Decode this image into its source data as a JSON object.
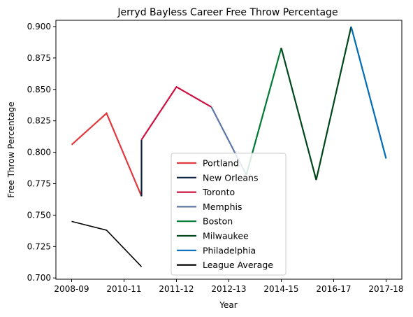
{
  "chart_data": {
    "type": "line",
    "title": "Jerryd Bayless Career Free Throw Percentage",
    "xlabel": "Year",
    "ylabel": "Free Throw Percentage",
    "x_tick_labels": [
      "2008-09",
      "2010-11",
      "2011-12",
      "2012-13",
      "2014-15",
      "2016-17",
      "2017-18"
    ],
    "x_tick_positions": [
      0,
      1.5,
      3,
      4.5,
      6,
      7.5,
      9
    ],
    "xlim": [
      -0.45,
      9.45
    ],
    "ylim": [
      0.699,
      0.905
    ],
    "yticks": [
      0.7,
      0.725,
      0.75,
      0.775,
      0.8,
      0.825,
      0.85,
      0.875,
      0.9
    ],
    "ytick_labels": [
      "0.700",
      "0.725",
      "0.750",
      "0.775",
      "0.800",
      "0.825",
      "0.850",
      "0.875",
      "0.900"
    ],
    "grid": false,
    "legend_placement": "bottom-center",
    "series": [
      {
        "name": "Portland",
        "color": "#e03a3e",
        "points": [
          [
            0,
            0.806
          ],
          [
            1,
            0.831
          ],
          [
            2,
            0.765
          ]
        ]
      },
      {
        "name": "New Orleans",
        "color": "#0c2340",
        "points": [
          [
            2,
            0.765
          ],
          [
            2,
            0.81
          ]
        ]
      },
      {
        "name": "Toronto",
        "color": "#ce1141",
        "points": [
          [
            2,
            0.81
          ],
          [
            3,
            0.852
          ],
          [
            4,
            0.836
          ]
        ]
      },
      {
        "name": "Memphis",
        "color": "#5d76a9",
        "points": [
          [
            4,
            0.836
          ],
          [
            5,
            0.782
          ]
        ]
      },
      {
        "name": "Boston",
        "color": "#007a33",
        "points": [
          [
            5,
            0.782
          ],
          [
            6,
            0.883
          ]
        ]
      },
      {
        "name": "Milwaukee",
        "color": "#00471b",
        "points": [
          [
            6,
            0.883
          ],
          [
            7,
            0.778
          ],
          [
            8,
            0.9
          ]
        ]
      },
      {
        "name": "Philadelphia",
        "color": "#006bb6",
        "points": [
          [
            8,
            0.9
          ],
          [
            9,
            0.795
          ]
        ]
      },
      {
        "name": "League Average",
        "color": "#000000",
        "points": [
          [
            0,
            0.745
          ],
          [
            1,
            0.738
          ],
          [
            2,
            0.709
          ]
        ]
      }
    ]
  }
}
